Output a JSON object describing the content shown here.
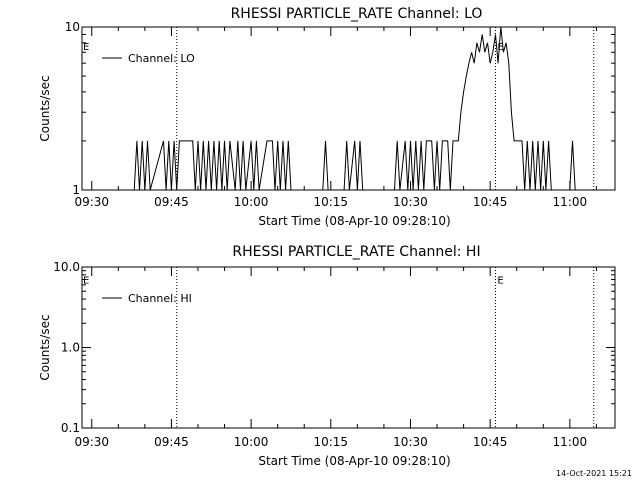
{
  "chart_data": [
    {
      "type": "line",
      "title": "RHESSI PARTICLE_RATE Channel: LO",
      "xlabel": "Start Time (08-Apr-10 09:28:10)",
      "ylabel": "Counts/sec",
      "yscale": "log",
      "ylim": [
        1,
        10
      ],
      "xlim": [
        "09:28:10",
        "11:08:30"
      ],
      "x_ticks": [
        "09:30",
        "09:45",
        "10:00",
        "10:15",
        "10:30",
        "10:45",
        "11:00"
      ],
      "y_ticks": [
        "1",
        "10"
      ],
      "legend": "top-left",
      "series": [
        {
          "name": "Channel: LO",
          "points": [
            [
              "09:28:10",
              1
            ],
            [
              "09:38:00",
              1
            ],
            [
              "09:38:30",
              2
            ],
            [
              "09:39:00",
              1
            ],
            [
              "09:39:30",
              2
            ],
            [
              "09:40:00",
              1
            ],
            [
              "09:40:30",
              2
            ],
            [
              "09:41:00",
              1
            ],
            [
              "09:43:30",
              2
            ],
            [
              "09:44:00",
              1
            ],
            [
              "09:44:30",
              2
            ],
            [
              "09:45:00",
              1
            ],
            [
              "09:45:30",
              2
            ],
            [
              "09:46:00",
              1
            ],
            [
              "09:46:30",
              2
            ],
            [
              "09:49:00",
              2
            ],
            [
              "09:49:30",
              1
            ],
            [
              "09:50:00",
              2
            ],
            [
              "09:50:30",
              1
            ],
            [
              "09:51:00",
              2
            ],
            [
              "09:51:30",
              1
            ],
            [
              "09:52:00",
              2
            ],
            [
              "09:52:30",
              1
            ],
            [
              "09:53:00",
              2
            ],
            [
              "09:53:30",
              1
            ],
            [
              "09:54:00",
              2
            ],
            [
              "09:54:30",
              1
            ],
            [
              "09:55:00",
              2
            ],
            [
              "09:55:30",
              1
            ],
            [
              "09:56:00",
              2
            ],
            [
              "09:57:00",
              1
            ],
            [
              "09:57:30",
              2
            ],
            [
              "09:58:00",
              1
            ],
            [
              "09:58:30",
              2
            ],
            [
              "09:59:00",
              1
            ],
            [
              "10:00:00",
              2
            ],
            [
              "10:00:30",
              1
            ],
            [
              "10:01:00",
              2
            ],
            [
              "10:01:30",
              1
            ],
            [
              "10:03:00",
              2
            ],
            [
              "10:04:00",
              2
            ],
            [
              "10:04:30",
              1
            ],
            [
              "10:05:00",
              2
            ],
            [
              "10:05:30",
              1
            ],
            [
              "10:06:00",
              2
            ],
            [
              "10:06:30",
              1
            ],
            [
              "10:07:00",
              2
            ],
            [
              "10:07:30",
              1
            ],
            [
              "10:13:30",
              1
            ],
            [
              "10:14:00",
              2
            ],
            [
              "10:14:30",
              1
            ],
            [
              "10:17:30",
              1
            ],
            [
              "10:18:00",
              2
            ],
            [
              "10:18:30",
              1
            ],
            [
              "10:19:30",
              2
            ],
            [
              "10:20:00",
              1
            ],
            [
              "10:20:30",
              2
            ],
            [
              "10:21:00",
              1
            ],
            [
              "10:27:00",
              1
            ],
            [
              "10:27:30",
              2
            ],
            [
              "10:28:00",
              1
            ],
            [
              "10:29:00",
              2
            ],
            [
              "10:29:30",
              1
            ],
            [
              "10:30:00",
              2
            ],
            [
              "10:30:30",
              1
            ],
            [
              "10:31:00",
              2
            ],
            [
              "10:31:30",
              1
            ],
            [
              "10:32:00",
              2
            ],
            [
              "10:32:30",
              1
            ],
            [
              "10:33:00",
              2
            ],
            [
              "10:34:00",
              2
            ],
            [
              "10:34:30",
              1
            ],
            [
              "10:35:00",
              2
            ],
            [
              "10:35:30",
              1
            ],
            [
              "10:36:00",
              2
            ],
            [
              "10:37:00",
              2
            ],
            [
              "10:37:30",
              1
            ],
            [
              "10:38:00",
              2
            ],
            [
              "10:39:00",
              2
            ],
            [
              "10:39:30",
              3
            ],
            [
              "10:40:00",
              4
            ],
            [
              "10:40:30",
              5
            ],
            [
              "10:41:00",
              6
            ],
            [
              "10:41:30",
              7
            ],
            [
              "10:42:00",
              6
            ],
            [
              "10:42:30",
              8
            ],
            [
              "10:43:00",
              7
            ],
            [
              "10:43:30",
              9
            ],
            [
              "10:44:00",
              7
            ],
            [
              "10:44:30",
              8
            ],
            [
              "10:45:00",
              6
            ],
            [
              "10:45:30",
              7
            ],
            [
              "10:46:00",
              9
            ],
            [
              "10:46:30",
              6
            ],
            [
              "10:47:00",
              10
            ],
            [
              "10:47:30",
              7
            ],
            [
              "10:48:00",
              8
            ],
            [
              "10:48:30",
              6
            ],
            [
              "10:49:00",
              3
            ],
            [
              "10:49:30",
              2
            ],
            [
              "10:51:00",
              2
            ],
            [
              "10:51:30",
              1
            ],
            [
              "10:52:00",
              2
            ],
            [
              "10:52:30",
              1
            ],
            [
              "10:53:00",
              2
            ],
            [
              "10:53:30",
              1
            ],
            [
              "10:54:00",
              2
            ],
            [
              "10:54:30",
              1
            ],
            [
              "10:55:00",
              2
            ],
            [
              "10:55:30",
              1
            ],
            [
              "10:56:00",
              2
            ],
            [
              "10:56:30",
              1
            ],
            [
              "11:00:00",
              1
            ],
            [
              "11:00:30",
              2
            ],
            [
              "11:01:00",
              1
            ],
            [
              "11:02:00",
              1
            ]
          ]
        }
      ],
      "event_lines": [
        "09:46:00",
        "10:46:00",
        "11:04:30"
      ],
      "event_flags": [
        {
          "text": "E",
          "x": "09:28:10",
          "y": 8.3
        },
        {
          "text": "E",
          "x": "10:46:10",
          "y": 8.3
        }
      ]
    },
    {
      "type": "line",
      "title": "RHESSI PARTICLE_RATE Channel: HI",
      "xlabel": "Start Time (08-Apr-10 09:28:10)",
      "ylabel": "Counts/sec",
      "yscale": "log",
      "ylim": [
        0.1,
        10
      ],
      "xlim": [
        "09:28:10",
        "11:08:30"
      ],
      "x_ticks": [
        "09:30",
        "09:45",
        "10:00",
        "10:15",
        "10:30",
        "10:45",
        "11:00"
      ],
      "y_ticks": [
        "0.1",
        "1.0",
        "10.0"
      ],
      "legend": "top-left",
      "series": [
        {
          "name": "Channel: HI",
          "points": []
        }
      ],
      "event_lines": [
        "09:46:00",
        "10:46:00",
        "11:04:30"
      ],
      "event_flags": [
        {
          "text": "E",
          "x": "09:28:10",
          "y": 8.3
        },
        {
          "text": "E",
          "x": "10:46:10",
          "y": 8.3
        }
      ]
    }
  ],
  "footer": {
    "timestamp": "14-Oct-2021 15:21"
  }
}
